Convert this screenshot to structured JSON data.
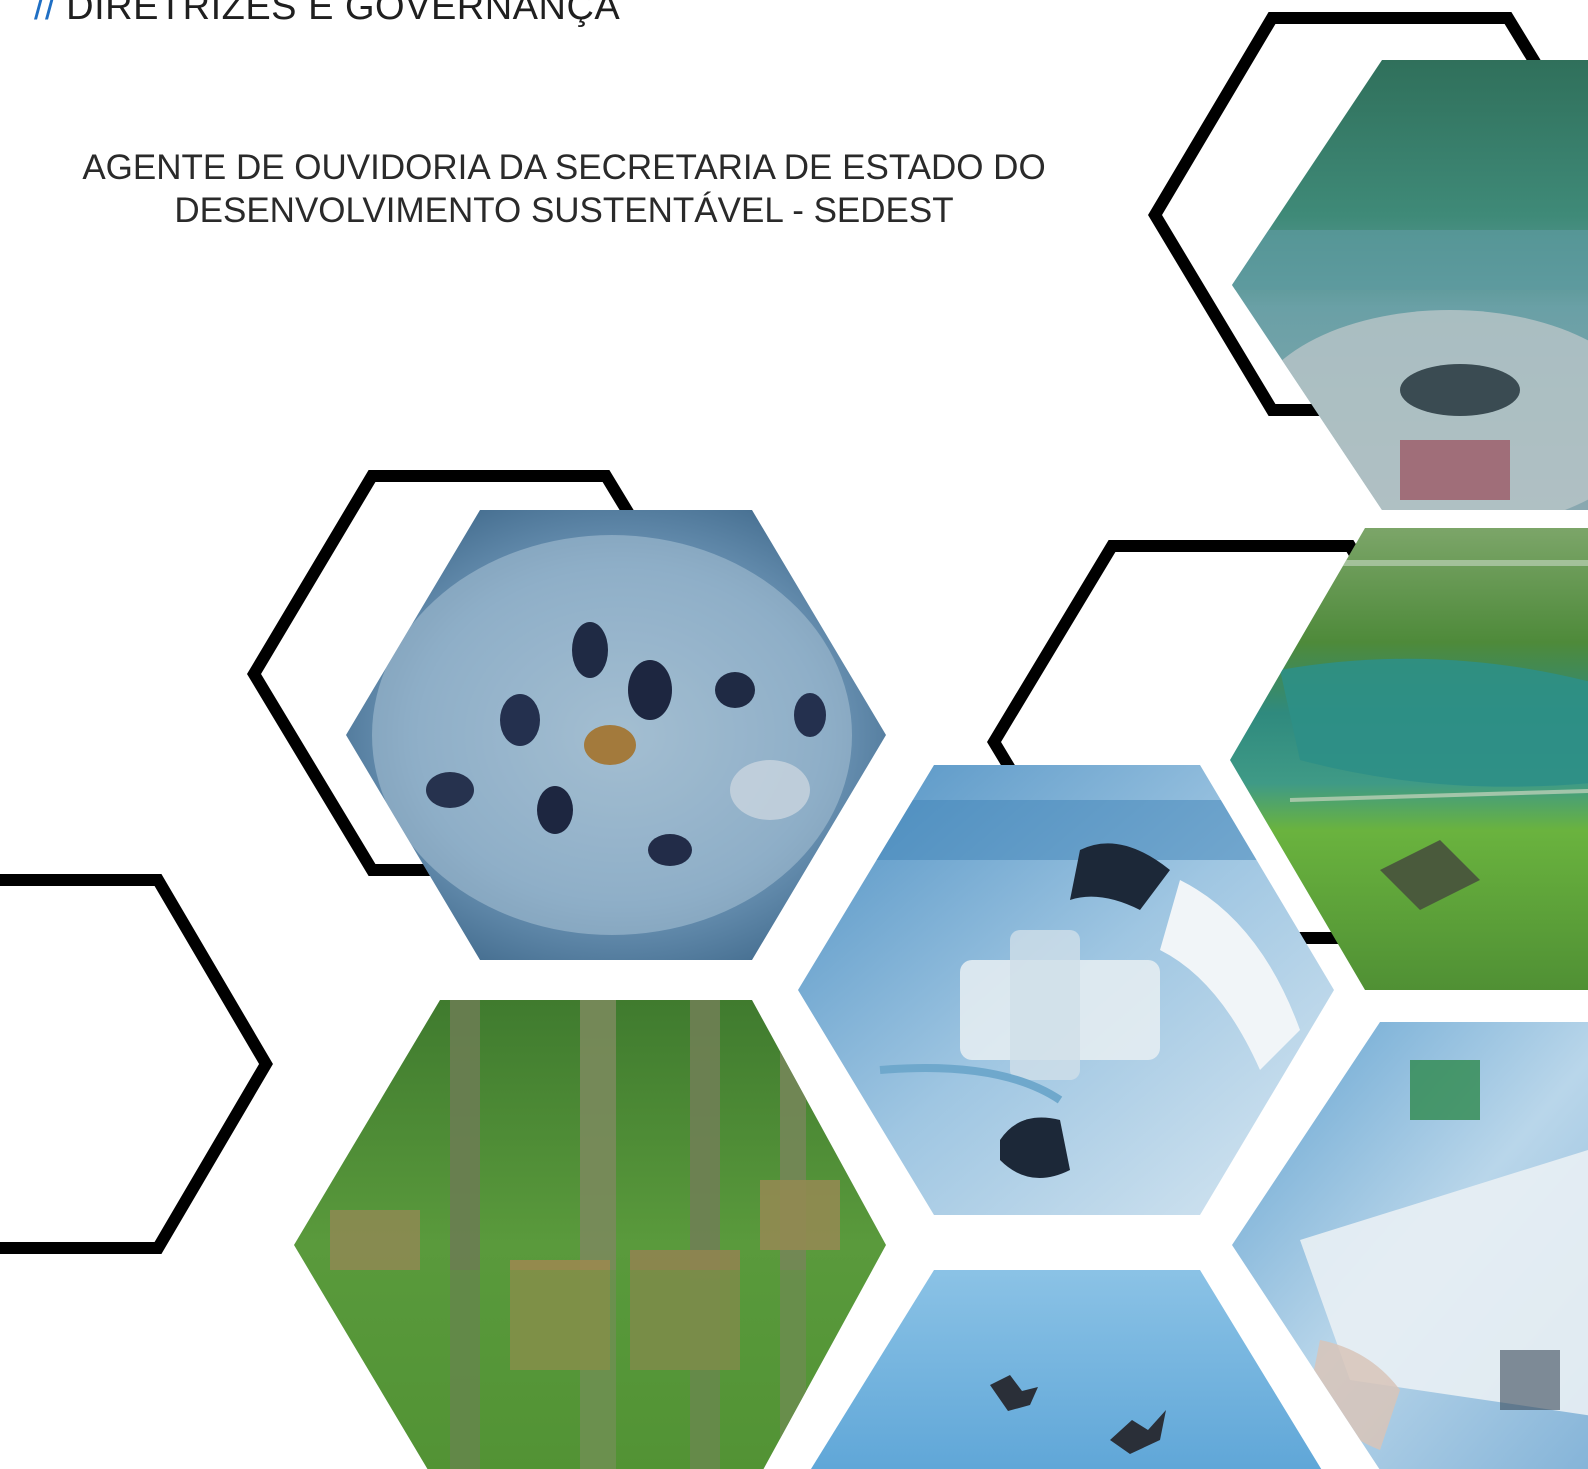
{
  "header": {
    "slashes": "//",
    "title": "DIRETRIZES E GOVERNANÇA"
  },
  "subtitle": {
    "line1": "AGENTE DE OUVIDORIA DA SECRETARIA DE ESTADO DO",
    "line2": "DESENVOLVIMENTO SUSTENTÁVEL - SEDEST"
  },
  "colors": {
    "accent": "#1f6fc4",
    "outline": "#000000",
    "tint_blue": "#5f9fd0",
    "tint_green": "#5e9a3c",
    "tint_teal": "#3d8f7a"
  }
}
